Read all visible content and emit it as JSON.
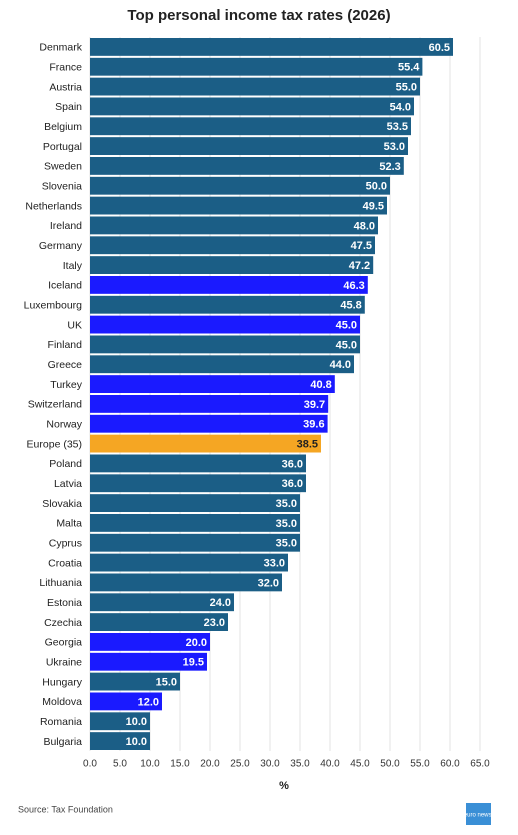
{
  "chart_data": {
    "type": "hbar",
    "title": "Top personal income tax rates (2026)",
    "categories": [
      "Denmark",
      "France",
      "Austria",
      "Spain",
      "Belgium",
      "Portugal",
      "Sweden",
      "Slovenia",
      "Netherlands",
      "Ireland",
      "Germany",
      "Italy",
      "Iceland",
      "Luxembourg",
      "UK",
      "Finland",
      "Greece",
      "Turkey",
      "Switzerland",
      "Norway",
      "Europe (35)",
      "Poland",
      "Latvia",
      "Slovakia",
      "Malta",
      "Cyprus",
      "Croatia",
      "Lithuania",
      "Estonia",
      "Czechia",
      "Georgia",
      "Ukraine",
      "Hungary",
      "Moldova",
      "Romania",
      "Bulgaria"
    ],
    "values": [
      60.5,
      55.4,
      55.0,
      54.0,
      53.5,
      53.0,
      52.3,
      50.0,
      49.5,
      48.0,
      47.5,
      47.2,
      46.3,
      45.8,
      45.0,
      45.0,
      44.0,
      40.8,
      39.7,
      39.6,
      38.5,
      36.0,
      36.0,
      35.0,
      35.0,
      35.0,
      33.0,
      32.0,
      24.0,
      23.0,
      20.0,
      19.5,
      15.0,
      12.0,
      10.0,
      10.0
    ],
    "value_labels": [
      "60.5",
      "55.4",
      "55.0",
      "54.0",
      "53.5",
      "53.0",
      "52.3",
      "50.0",
      "49.5",
      "48.0",
      "47.5",
      "47.2",
      "46.3",
      "45.8",
      "45.0",
      "45.0",
      "44.0",
      "40.8",
      "39.7",
      "39.6",
      "38.5",
      "36.0",
      "36.0",
      "35.0",
      "35.0",
      "35.0",
      "33.0",
      "32.0",
      "24.0",
      "23.0",
      "20.0",
      "19.5",
      "15.0",
      "12.0",
      "10.0",
      "10.0"
    ],
    "colors": [
      "#1b5e86",
      "#1b5e86",
      "#1b5e86",
      "#1b5e86",
      "#1b5e86",
      "#1b5e86",
      "#1b5e86",
      "#1b5e86",
      "#1b5e86",
      "#1b5e86",
      "#1b5e86",
      "#1b5e86",
      "#1a1aff",
      "#1b5e86",
      "#1a1aff",
      "#1b5e86",
      "#1b5e86",
      "#1a1aff",
      "#1a1aff",
      "#1a1aff",
      "#f5a623",
      "#1b5e86",
      "#1b5e86",
      "#1b5e86",
      "#1b5e86",
      "#1b5e86",
      "#1b5e86",
      "#1b5e86",
      "#1b5e86",
      "#1b5e86",
      "#1a1aff",
      "#1a1aff",
      "#1b5e86",
      "#1a1aff",
      "#1b5e86",
      "#1b5e86"
    ],
    "xlabel": "%",
    "xlim": [
      0,
      65
    ],
    "xticks": [
      {
        "value": 0,
        "label": "0.0"
      },
      {
        "value": 5,
        "label": "5.0"
      },
      {
        "value": 10,
        "label": "10.0"
      },
      {
        "value": 15,
        "label": "15.0"
      },
      {
        "value": 20,
        "label": "20.0"
      },
      {
        "value": 25,
        "label": "25.0"
      },
      {
        "value": 30,
        "label": "30.0"
      },
      {
        "value": 35,
        "label": "35.0"
      },
      {
        "value": 40,
        "label": "40.0"
      },
      {
        "value": 45,
        "label": "45.0"
      },
      {
        "value": 50,
        "label": "50.0"
      },
      {
        "value": 55,
        "label": "55.0"
      },
      {
        "value": 60,
        "label": "60.0"
      },
      {
        "value": 65,
        "label": "65.0"
      }
    ],
    "grid": true,
    "source": "Source: Tax Foundation",
    "logo": "euro news."
  }
}
